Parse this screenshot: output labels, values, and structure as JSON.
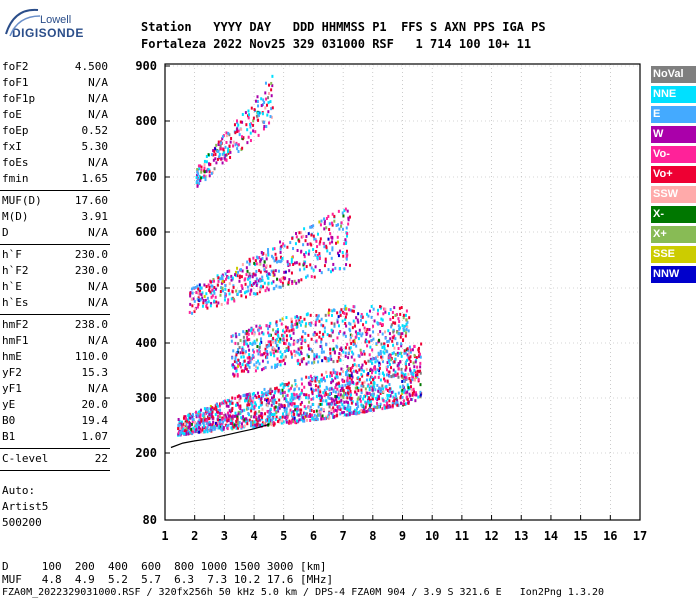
{
  "logo": {
    "top_text": "Lowell",
    "main_text": "DIGISONDE"
  },
  "header": {
    "line1": "Station   YYYY DAY   DDD HHMMSS P1  FFS S AXN PPS IGA PS",
    "line2": "Fortaleza 2022 Nov25 329 031000 RSF   1 714 100 10+ 11"
  },
  "params": {
    "group1": [
      {
        "name": "foF2",
        "value": "4.500"
      },
      {
        "name": "foF1",
        "value": "N/A"
      },
      {
        "name": "foF1p",
        "value": "N/A"
      },
      {
        "name": "foE",
        "value": "N/A"
      },
      {
        "name": "foEp",
        "value": "0.52"
      },
      {
        "name": "fxI",
        "value": "5.30"
      },
      {
        "name": "foEs",
        "value": "N/A"
      },
      {
        "name": "fmin",
        "value": "1.65"
      }
    ],
    "group2": [
      {
        "name": "MUF(D)",
        "value": "17.60"
      },
      {
        "name": "M(D)",
        "value": "3.91"
      },
      {
        "name": "D",
        "value": "N/A"
      }
    ],
    "group3": [
      {
        "name": "h`F",
        "value": "230.0"
      },
      {
        "name": "h`F2",
        "value": "230.0"
      },
      {
        "name": "h`E",
        "value": "N/A"
      },
      {
        "name": "h`Es",
        "value": "N/A"
      }
    ],
    "group4": [
      {
        "name": "hmF2",
        "value": "238.0"
      },
      {
        "name": "hmF1",
        "value": "N/A"
      },
      {
        "name": "hmE",
        "value": "110.0"
      },
      {
        "name": "yF2",
        "value": "15.3"
      },
      {
        "name": "yF1",
        "value": "N/A"
      },
      {
        "name": "yE",
        "value": "20.0"
      },
      {
        "name": "B0",
        "value": "19.4"
      },
      {
        "name": "B1",
        "value": "1.07"
      }
    ],
    "group5": [
      {
        "name": "C-level",
        "value": "22"
      }
    ]
  },
  "autoscaling": {
    "line1": "Auto:",
    "line2": "Artist5",
    "line3": "500200"
  },
  "legend": [
    {
      "label": "NoVal",
      "color": "#7f7f7f",
      "text_color": "#ffffff"
    },
    {
      "label": "NNE",
      "color": "#00e0ff",
      "text_color": "#ffffff"
    },
    {
      "label": "E",
      "color": "#44aaff",
      "text_color": "#ffffff"
    },
    {
      "label": "W",
      "color": "#aa00aa",
      "text_color": "#ffffff"
    },
    {
      "label": "Vo-",
      "color": "#ff2299",
      "text_color": "#ffffff"
    },
    {
      "label": "Vo+",
      "color": "#ee0033",
      "text_color": "#ffffff"
    },
    {
      "label": "SSW",
      "color": "#ffaaaa",
      "text_color": "#ffffff"
    },
    {
      "label": "X-",
      "color": "#007700",
      "text_color": "#ffffff"
    },
    {
      "label": "X+",
      "color": "#88bb55",
      "text_color": "#ffffff"
    },
    {
      "label": "SSE",
      "color": "#cccc00",
      "text_color": "#ffffff"
    },
    {
      "label": "NNW",
      "color": "#0000cc",
      "text_color": "#ffffff"
    }
  ],
  "footer": {
    "d_row": "D     100  200  400  600  800 1000 1500 3000 [km]",
    "muf_row": "MUF   4.8  4.9  5.2  5.7  6.3  7.3 10.2 17.6 [MHz]",
    "file_row": "FZA0M_2022329031000.RSF / 320fx256h 50 kHz 5.0 km / DPS-4 FZA0M 904 / 3.9 S 321.6 E   Ion2Png 1.3.20"
  },
  "chart_data": {
    "type": "scatter",
    "title": "",
    "xlabel": "",
    "ylabel": "",
    "xlim": [
      1,
      17
    ],
    "ylim": [
      80,
      900
    ],
    "x_ticks": [
      1,
      2,
      3,
      4,
      5,
      6,
      7,
      8,
      9,
      10,
      11,
      12,
      13,
      14,
      15,
      16,
      17
    ],
    "y_ticks": [
      80,
      200,
      300,
      400,
      500,
      600,
      700,
      800,
      900
    ],
    "x_tick_labels": [
      "1",
      "2",
      "3",
      "4",
      "5",
      "6",
      "7",
      "8",
      "9",
      "10",
      "11",
      "12",
      "13",
      "14",
      "15",
      "16",
      "17"
    ],
    "y_tick_labels": [
      "80",
      "200",
      "300",
      "400",
      "500",
      "600",
      "700",
      "800",
      "900"
    ],
    "grid": "dotted",
    "legend_position": "right",
    "echo_regions": [
      {
        "name": "F-layer first hop",
        "x_range": [
          1.4,
          9.6
        ],
        "h_lower": [
          [
            1.4,
            235
          ],
          [
            3,
            245
          ],
          [
            5,
            255
          ],
          [
            7,
            270
          ],
          [
            9,
            290
          ],
          [
            9.6,
            300
          ]
        ],
        "h_upper": [
          [
            1.4,
            265
          ],
          [
            3,
            300
          ],
          [
            5,
            330
          ],
          [
            7,
            360
          ],
          [
            9,
            390
          ],
          [
            9.6,
            410
          ]
        ]
      },
      {
        "name": "Second hop",
        "x_range": [
          3.2,
          9.2
        ],
        "h_lower": [
          [
            3.2,
            340
          ],
          [
            5,
            360
          ],
          [
            7,
            370
          ],
          [
            9,
            380
          ]
        ],
        "h_upper": [
          [
            3.2,
            420
          ],
          [
            5,
            450
          ],
          [
            7,
            470
          ],
          [
            9,
            470
          ]
        ]
      },
      {
        "name": "Third hop",
        "x_range": [
          1.8,
          7.2
        ],
        "h_lower": [
          [
            1.8,
            455
          ],
          [
            4,
            490
          ],
          [
            6,
            520
          ],
          [
            7.2,
            540
          ]
        ],
        "h_upper": [
          [
            1.8,
            500
          ],
          [
            4,
            560
          ],
          [
            6,
            620
          ],
          [
            7.2,
            650
          ]
        ]
      },
      {
        "name": "Fourth hop",
        "x_range": [
          2,
          4.6
        ],
        "h_lower": [
          [
            2,
            680
          ],
          [
            3,
            730
          ],
          [
            4,
            770
          ],
          [
            4.6,
            800
          ]
        ],
        "h_upper": [
          [
            2,
            720
          ],
          [
            3,
            780
          ],
          [
            4,
            840
          ],
          [
            4.6,
            895
          ]
        ]
      }
    ],
    "profile_line": [
      [
        1.2,
        210
      ],
      [
        1.6,
        218
      ],
      [
        2,
        222
      ],
      [
        2.5,
        226
      ],
      [
        3,
        232
      ],
      [
        3.5,
        238
      ],
      [
        4,
        244
      ],
      [
        4.5,
        252
      ]
    ]
  }
}
